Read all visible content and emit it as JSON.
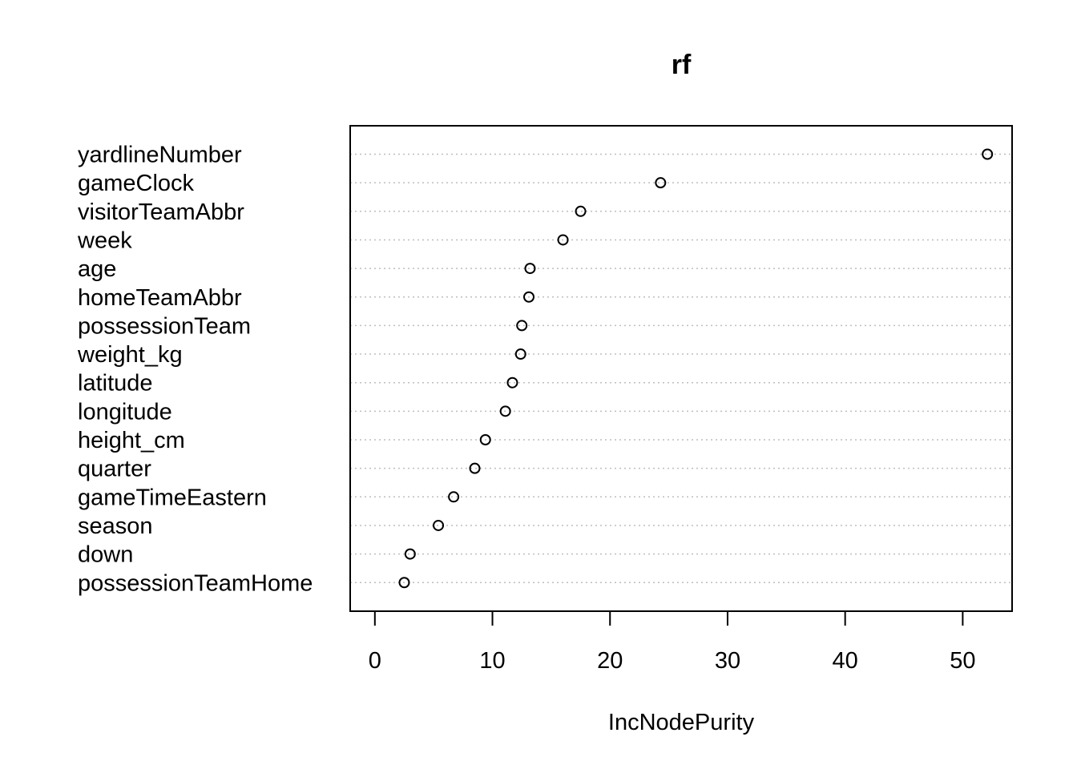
{
  "chart_data": {
    "type": "scatter",
    "title": "rf",
    "xlabel": "IncNodePurity",
    "ylabel": "",
    "xlim": [
      -2.1,
      54.2
    ],
    "xticks": [
      0,
      10,
      20,
      30,
      40,
      50
    ],
    "grid": "horizontal-dotted",
    "marker": "open-circle",
    "categories": [
      "yardlineNumber",
      "gameClock",
      "visitorTeamAbbr",
      "week",
      "age",
      "homeTeamAbbr",
      "possessionTeam",
      "weight_kg",
      "latitude",
      "longitude",
      "height_cm",
      "quarter",
      "gameTimeEastern",
      "season",
      "down",
      "possessionTeamHome"
    ],
    "values": [
      52.1,
      24.3,
      17.5,
      16.0,
      13.2,
      13.1,
      12.5,
      12.4,
      11.7,
      11.1,
      9.4,
      8.5,
      6.7,
      5.4,
      3.0,
      2.5
    ]
  }
}
